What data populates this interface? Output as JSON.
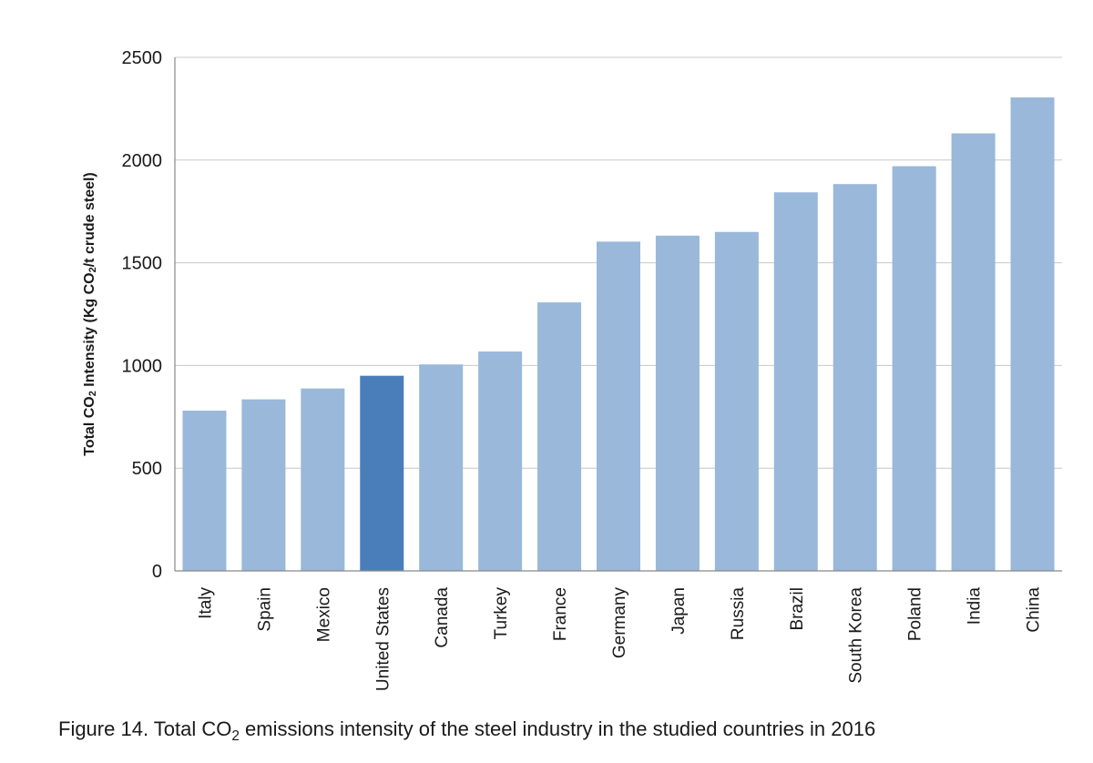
{
  "chart_data": {
    "type": "bar",
    "title": "",
    "xlabel": "",
    "ylabel_parts": {
      "before": "Total CO",
      "sub": "2",
      "middle": " Intensity (Kg CO",
      "sub2": "2",
      "after": "/t crude steel)"
    },
    "ylim": [
      0,
      2500
    ],
    "yticks": [
      0,
      500,
      1000,
      1500,
      2000,
      2500
    ],
    "grid": true,
    "categories": [
      "Italy",
      "Spain",
      "Mexico",
      "United States",
      "Canada",
      "Turkey",
      "France",
      "Germany",
      "Japan",
      "Russia",
      "Brazil",
      "South Korea",
      "Poland",
      "India",
      "China"
    ],
    "values": [
      780,
      835,
      888,
      950,
      1005,
      1068,
      1307,
      1603,
      1632,
      1650,
      1843,
      1883,
      1970,
      2130,
      2305
    ],
    "highlight": "United States",
    "colors": {
      "bar": "#99b8da",
      "highlight": "#4a7ebb",
      "grid": "#c8c8c8",
      "axis": "#888888",
      "text": "#1a1a1a"
    }
  },
  "caption": {
    "before": "Figure 14. Total CO",
    "sub": "2",
    "after": " emissions intensity of the steel industry in the studied countries in 2016"
  }
}
